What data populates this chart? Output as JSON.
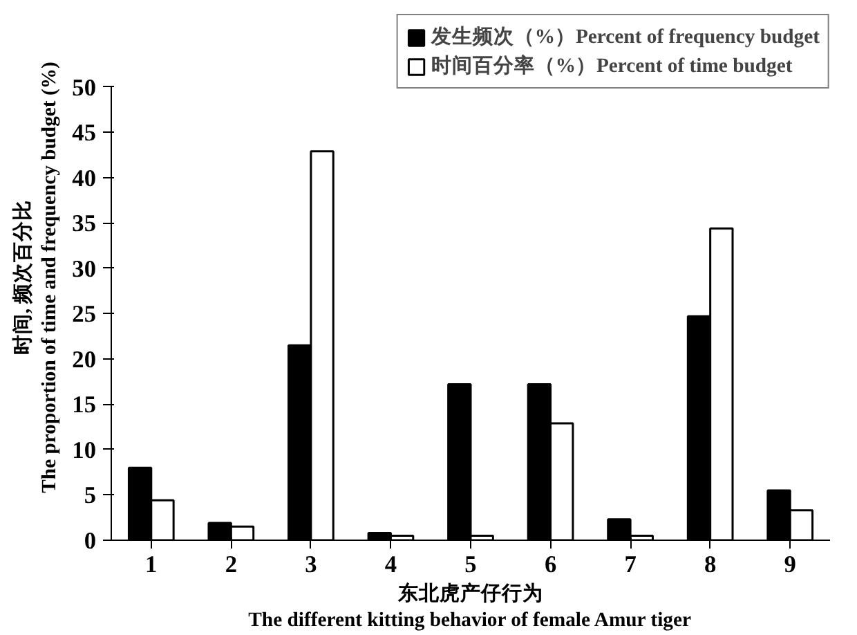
{
  "chart_data": {
    "type": "bar",
    "categories": [
      "1",
      "2",
      "3",
      "4",
      "5",
      "6",
      "7",
      "8",
      "9"
    ],
    "xlabel": "东北虎产仔行为\nThe different kitting behavior of female Amur tiger",
    "ylabel": "时间, 频次百分比\nThe proportion of time and frequency budget (%)",
    "series": [
      {
        "name": "发生频次（%）Percent of frequency budget",
        "color": "#000000",
        "values": [
          8.0,
          1.9,
          21.5,
          0.8,
          17.2,
          17.2,
          2.3,
          24.7,
          5.5
        ]
      },
      {
        "name": "时间百分率（%）Percent of time budget",
        "color": "#ffffff",
        "values": [
          4.4,
          1.5,
          42.9,
          0.5,
          0.5,
          12.9,
          0.5,
          34.4,
          3.3
        ]
      }
    ],
    "ylim": [
      0,
      50
    ],
    "yticks": [
      0,
      5,
      10,
      15,
      20,
      25,
      30,
      35,
      40,
      45,
      50
    ],
    "grid": false,
    "legend": "top right"
  }
}
